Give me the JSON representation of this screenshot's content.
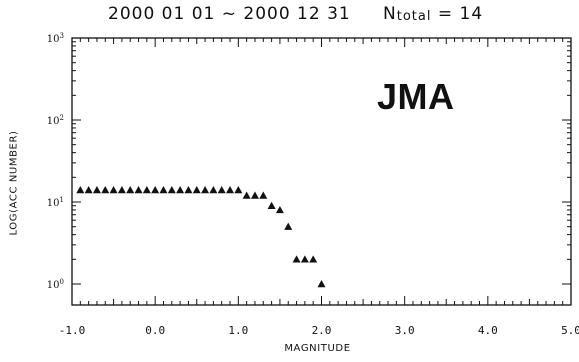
{
  "header": {
    "date_range": "2000 01 01 ~ 2000 12 31",
    "total_prefix": "N",
    "total_sub": "total",
    "total_suffix": " = 14"
  },
  "watermark": "JMA",
  "chart_data": {
    "type": "scatter",
    "title": "",
    "xlabel": "MAGNITUDE",
    "ylabel": "LOG(ACC NUMBER)",
    "xlim": [
      -1.0,
      5.0
    ],
    "ylim": [
      1,
      1000
    ],
    "yscale": "log",
    "x_ticks": [
      "-1.0",
      "0.0",
      "1.0",
      "2.0",
      "3.0",
      "4.0",
      "5.0"
    ],
    "y_ticks": [
      "10^0",
      "10^1",
      "10^2",
      "10^3"
    ],
    "marker": "filled-triangle",
    "grid": false,
    "points": [
      {
        "x": -0.9,
        "y": 14
      },
      {
        "x": -0.8,
        "y": 14
      },
      {
        "x": -0.7,
        "y": 14
      },
      {
        "x": -0.6,
        "y": 14
      },
      {
        "x": -0.5,
        "y": 14
      },
      {
        "x": -0.4,
        "y": 14
      },
      {
        "x": -0.3,
        "y": 14
      },
      {
        "x": -0.2,
        "y": 14
      },
      {
        "x": -0.1,
        "y": 14
      },
      {
        "x": 0.0,
        "y": 14
      },
      {
        "x": 0.1,
        "y": 14
      },
      {
        "x": 0.2,
        "y": 14
      },
      {
        "x": 0.3,
        "y": 14
      },
      {
        "x": 0.4,
        "y": 14
      },
      {
        "x": 0.5,
        "y": 14
      },
      {
        "x": 0.6,
        "y": 14
      },
      {
        "x": 0.7,
        "y": 14
      },
      {
        "x": 0.8,
        "y": 14
      },
      {
        "x": 0.9,
        "y": 14
      },
      {
        "x": 1.0,
        "y": 14
      },
      {
        "x": 1.1,
        "y": 12
      },
      {
        "x": 1.2,
        "y": 12
      },
      {
        "x": 1.3,
        "y": 12
      },
      {
        "x": 1.4,
        "y": 9
      },
      {
        "x": 1.5,
        "y": 8
      },
      {
        "x": 1.6,
        "y": 5
      },
      {
        "x": 1.7,
        "y": 2
      },
      {
        "x": 1.8,
        "y": 2
      },
      {
        "x": 1.9,
        "y": 2
      },
      {
        "x": 2.0,
        "y": 1
      }
    ]
  }
}
